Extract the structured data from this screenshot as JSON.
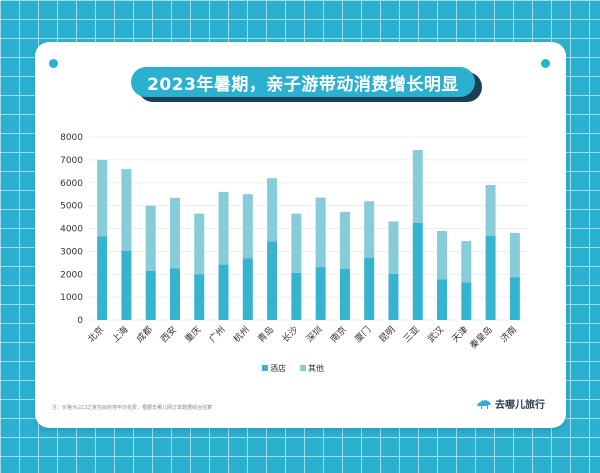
{
  "header": {
    "title": "2023年暑期，亲子游带动消费增长明显"
  },
  "footnote": "注：价格为三口之家在目的地平均花费，根据去哪儿网订单数据综合估算",
  "brand": {
    "name": "去哪儿旅行",
    "icon": "camel-icon"
  },
  "colors": {
    "hotel": "#35b3cf",
    "other": "#86cdd9",
    "background": "#2bb0cf",
    "title_shadow": "#1d3f56"
  },
  "chart_data": {
    "type": "bar",
    "stacked": true,
    "categories": [
      "北京",
      "上海",
      "成都",
      "西安",
      "重庆",
      "广州",
      "杭州",
      "青岛",
      "长沙",
      "深圳",
      "南京",
      "厦门",
      "昆明",
      "三亚",
      "武汉",
      "天津",
      "秦皇岛",
      "济南"
    ],
    "series": [
      {
        "name": "酒店",
        "values": [
          3650,
          3030,
          2150,
          2260,
          1990,
          2420,
          2700,
          3430,
          2060,
          2310,
          2240,
          2720,
          2020,
          4250,
          1770,
          1640,
          3670,
          1870
        ]
      },
      {
        "name": "其他",
        "values": [
          3350,
          3570,
          2850,
          3080,
          2660,
          3180,
          2800,
          2770,
          2590,
          3040,
          2490,
          2470,
          2290,
          3180,
          2120,
          1810,
          2230,
          1940
        ]
      }
    ],
    "yticks": [
      "0",
      "1000",
      "2000",
      "3000",
      "4000",
      "5000",
      "6000",
      "7000",
      "8000"
    ],
    "ylim": [
      0,
      8000
    ],
    "grid": true,
    "legend_position": "bottom-center"
  }
}
